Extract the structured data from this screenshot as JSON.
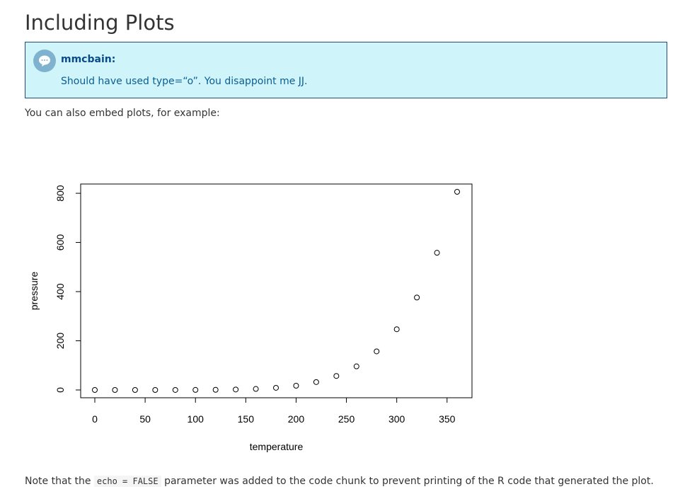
{
  "page": {
    "title": "Including Plots",
    "intro": "You can also embed plots, for example:"
  },
  "callout": {
    "author": "mmcbain:",
    "text": "Should have used type=“o”. You disappoint me JJ.",
    "icon": "speech-bubble-icon"
  },
  "note": {
    "before": "Note that the",
    "code": "echo = FALSE",
    "after": "parameter was added to the code chunk to prevent printing of the R code that generated the plot."
  },
  "chart_data": {
    "type": "scatter",
    "xlabel": "temperature",
    "ylabel": "pressure",
    "xlim": [
      0,
      360
    ],
    "ylim": [
      0,
      806
    ],
    "xticks": [
      0,
      50,
      100,
      150,
      200,
      250,
      300,
      350
    ],
    "yticks": [
      0,
      200,
      400,
      600,
      800
    ],
    "x": [
      0,
      20,
      40,
      60,
      80,
      100,
      120,
      140,
      160,
      180,
      200,
      220,
      240,
      260,
      280,
      300,
      320,
      340,
      360
    ],
    "y": [
      0.0002,
      0.0012,
      0.006,
      0.03,
      0.09,
      0.27,
      0.75,
      1.85,
      4.2,
      8.8,
      17.3,
      32.1,
      57,
      96,
      157,
      247,
      376,
      558,
      806
    ],
    "marker": "open-circle",
    "grid": false
  }
}
